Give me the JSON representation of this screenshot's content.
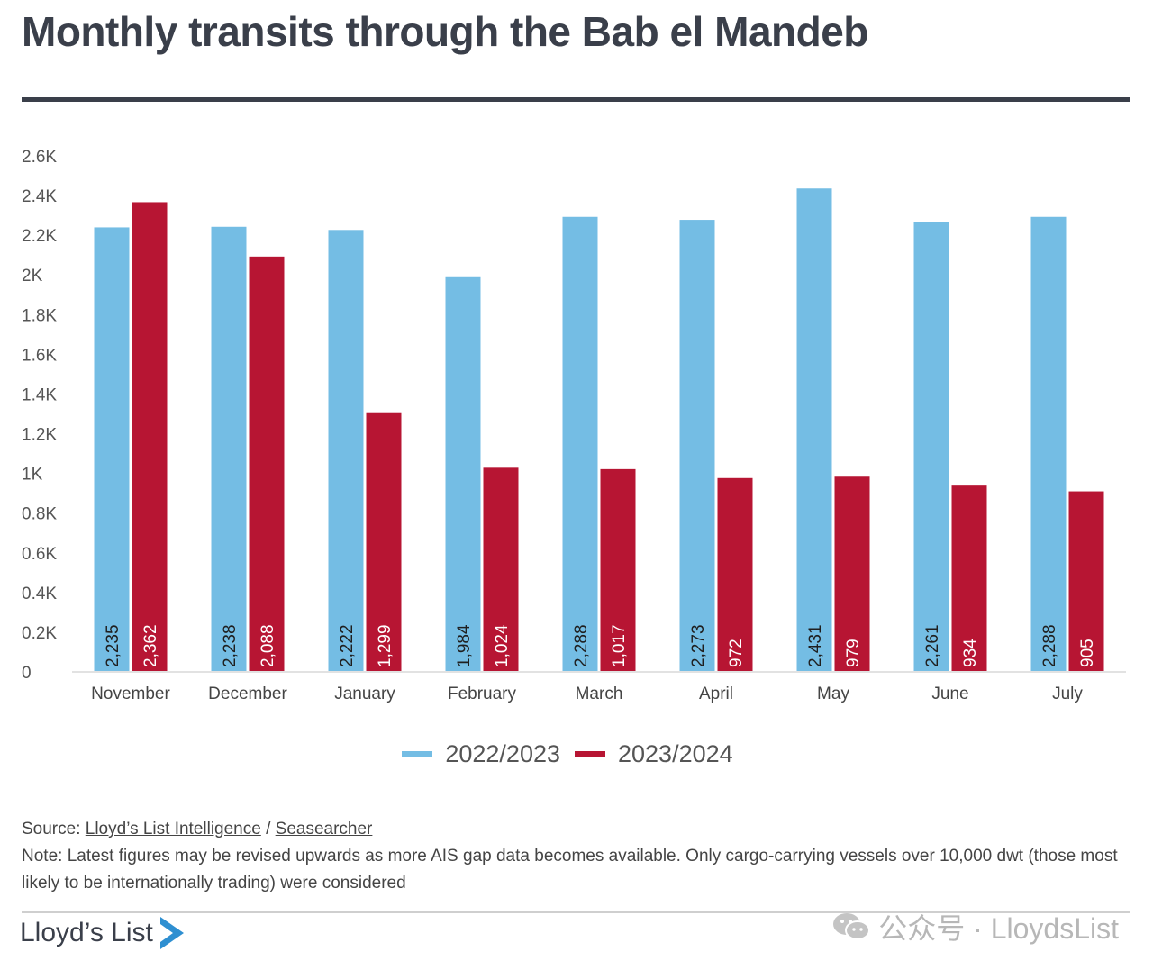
{
  "title": "Monthly transits through the Bab el Mandeb",
  "chart_data": {
    "type": "bar",
    "categories": [
      "November",
      "December",
      "January",
      "February",
      "March",
      "April",
      "May",
      "June",
      "July"
    ],
    "series": [
      {
        "name": "2022/2023",
        "color": "#74bde4",
        "values": [
          2235,
          2238,
          2222,
          1984,
          2288,
          2273,
          2431,
          2261,
          2288
        ],
        "labels": [
          "2,235",
          "2,238",
          "2,222",
          "1,984",
          "2,288",
          "2,273",
          "2,431",
          "2,261",
          "2,288"
        ]
      },
      {
        "name": "2023/2024",
        "color": "#b71533",
        "values": [
          2362,
          2088,
          1299,
          1024,
          1017,
          972,
          979,
          934,
          905
        ],
        "labels": [
          "2,362",
          "2,088",
          "1,299",
          "1,024",
          "1,017",
          "972",
          "979",
          "934",
          "905"
        ]
      }
    ],
    "ylim": [
      0,
      2600
    ],
    "y_ticks": [
      0,
      200,
      400,
      600,
      800,
      1000,
      1200,
      1400,
      1600,
      1800,
      2000,
      2200,
      2400,
      2600
    ],
    "y_tick_labels": [
      "0",
      "0.2K",
      "0.4K",
      "0.6K",
      "0.8K",
      "1K",
      "1.2K",
      "1.4K",
      "1.6K",
      "1.8K",
      "2K",
      "2.2K",
      "2.4K",
      "2.6K"
    ],
    "grid": false,
    "legend": "bottom"
  },
  "footer": {
    "source_prefix": "Source: ",
    "source_link_1": "Lloyd’s List Intelligence",
    "source_separator": " / ",
    "source_link_2": "Seasearcher",
    "note": "Note: Latest figures may be revised upwards as more AIS gap data becomes available. Only cargo-carrying vessels over 10,000 dwt (those most likely to be internationally trading) were considered"
  },
  "brand": {
    "name": "Lloyd’s List",
    "color": "#2e8fd1"
  },
  "watermark": {
    "text": "公众号 · LloydsList"
  }
}
